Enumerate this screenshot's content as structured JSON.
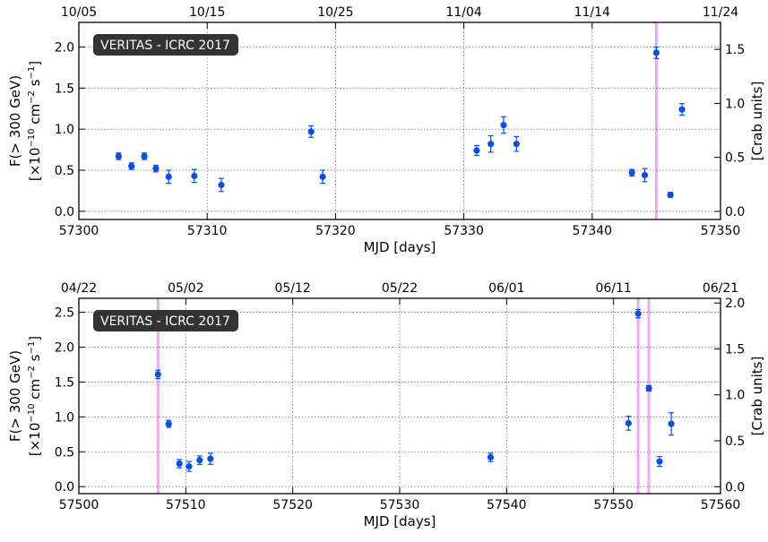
{
  "chart_data": [
    {
      "type": "scatter",
      "badge": "VERITAS - ICRC 2017",
      "xlabel": "MJD [days]",
      "ylabel_line1": "F(> 300 GeV)",
      "ylabel_unit_pre": "[×10",
      "ylabel_unit_exp1": "−10",
      "ylabel_unit_mid1": " cm",
      "ylabel_unit_exp2": "−2",
      "ylabel_unit_mid2": " s",
      "ylabel_unit_exp3": "−1",
      "ylabel_unit_post": "]",
      "y2label": "[Crab units]",
      "xlim": [
        57300,
        57350
      ],
      "ylim": [
        -0.1,
        2.3
      ],
      "y2lim": [
        -0.075,
        1.75
      ],
      "xticks": [
        57300,
        57310,
        57320,
        57330,
        57340,
        57350
      ],
      "yticks": [
        "0.0",
        "0.5",
        "1.0",
        "1.5",
        "2.0"
      ],
      "y2ticks": [
        "0.0",
        "0.5",
        "1.0",
        "1.5"
      ],
      "top_ticks": [
        {
          "label": "10/05",
          "x": 57300
        },
        {
          "label": "10/15",
          "x": 57310
        },
        {
          "label": "10/25",
          "x": 57320
        },
        {
          "label": "11/04",
          "x": 57330
        },
        {
          "label": "11/14",
          "x": 57340
        },
        {
          "label": "11/24",
          "x": 57350
        }
      ],
      "grid": true,
      "flare_lines": [
        57345
      ],
      "series": [
        {
          "points": [
            {
              "x": 57303.1,
              "y": 0.67,
              "err": 0.04
            },
            {
              "x": 57304.1,
              "y": 0.55,
              "err": 0.04
            },
            {
              "x": 57305.1,
              "y": 0.67,
              "err": 0.04
            },
            {
              "x": 57306.0,
              "y": 0.52,
              "err": 0.04
            },
            {
              "x": 57307.0,
              "y": 0.42,
              "err": 0.08
            },
            {
              "x": 57309.0,
              "y": 0.43,
              "err": 0.08
            },
            {
              "x": 57311.1,
              "y": 0.32,
              "err": 0.08
            },
            {
              "x": 57318.1,
              "y": 0.97,
              "err": 0.07
            },
            {
              "x": 57319.0,
              "y": 0.42,
              "err": 0.08
            },
            {
              "x": 57331.0,
              "y": 0.74,
              "err": 0.06
            },
            {
              "x": 57332.1,
              "y": 0.82,
              "err": 0.1
            },
            {
              "x": 57333.1,
              "y": 1.05,
              "err": 0.1
            },
            {
              "x": 57334.1,
              "y": 0.82,
              "err": 0.09
            },
            {
              "x": 57343.1,
              "y": 0.47,
              "err": 0.04
            },
            {
              "x": 57344.1,
              "y": 0.44,
              "err": 0.08
            },
            {
              "x": 57345.0,
              "y": 1.93,
              "err": 0.07
            },
            {
              "x": 57346.1,
              "y": 0.2,
              "err": 0.03
            },
            {
              "x": 57347.0,
              "y": 1.24,
              "err": 0.07
            }
          ]
        }
      ]
    },
    {
      "type": "scatter",
      "badge": "VERITAS - ICRC 2017",
      "xlabel": "MJD [days]",
      "ylabel_line1": "F(> 300 GeV)",
      "ylabel_unit_pre": "[×10",
      "ylabel_unit_exp1": "−10",
      "ylabel_unit_mid1": " cm",
      "ylabel_unit_exp2": "−2",
      "ylabel_unit_mid2": " s",
      "ylabel_unit_exp3": "−1",
      "ylabel_unit_post": "]",
      "y2label": "[Crab units]",
      "xlim": [
        57500,
        57560
      ],
      "ylim": [
        -0.1,
        2.7
      ],
      "y2lim": [
        -0.075,
        2.05
      ],
      "xticks": [
        57500,
        57510,
        57520,
        57530,
        57540,
        57550,
        57560
      ],
      "yticks": [
        "0.0",
        "0.5",
        "1.0",
        "1.5",
        "2.0",
        "2.5"
      ],
      "y2ticks": [
        "0.0",
        "0.5",
        "1.0",
        "1.5",
        "2.0"
      ],
      "top_ticks": [
        {
          "label": "04/22",
          "x": 57500
        },
        {
          "label": "05/02",
          "x": 57510
        },
        {
          "label": "05/12",
          "x": 57520
        },
        {
          "label": "05/22",
          "x": 57530
        },
        {
          "label": "06/01",
          "x": 57540
        },
        {
          "label": "06/11",
          "x": 57550
        },
        {
          "label": "06/21",
          "x": 57560
        }
      ],
      "grid": true,
      "flare_lines": [
        57507.4,
        57552.3,
        57553.3
      ],
      "series": [
        {
          "points": [
            {
              "x": 57507.4,
              "y": 1.61,
              "err": 0.06
            },
            {
              "x": 57508.4,
              "y": 0.9,
              "err": 0.05
            },
            {
              "x": 57509.4,
              "y": 0.33,
              "err": 0.06
            },
            {
              "x": 57510.3,
              "y": 0.29,
              "err": 0.07
            },
            {
              "x": 57511.3,
              "y": 0.38,
              "err": 0.06
            },
            {
              "x": 57512.3,
              "y": 0.4,
              "err": 0.08
            },
            {
              "x": 57538.5,
              "y": 0.42,
              "err": 0.06
            },
            {
              "x": 57551.4,
              "y": 0.91,
              "err": 0.1
            },
            {
              "x": 57552.3,
              "y": 2.48,
              "err": 0.06
            },
            {
              "x": 57553.3,
              "y": 1.41,
              "err": 0.04
            },
            {
              "x": 57554.3,
              "y": 0.36,
              "err": 0.07
            },
            {
              "x": 57555.4,
              "y": 0.9,
              "err": 0.16
            }
          ]
        }
      ]
    }
  ],
  "colors": {
    "marker": "#0b4fe0",
    "flare_line": "#f0a8f0",
    "badge_bg": "#333333",
    "badge_text": "#ffffff",
    "grid": "#555555"
  }
}
